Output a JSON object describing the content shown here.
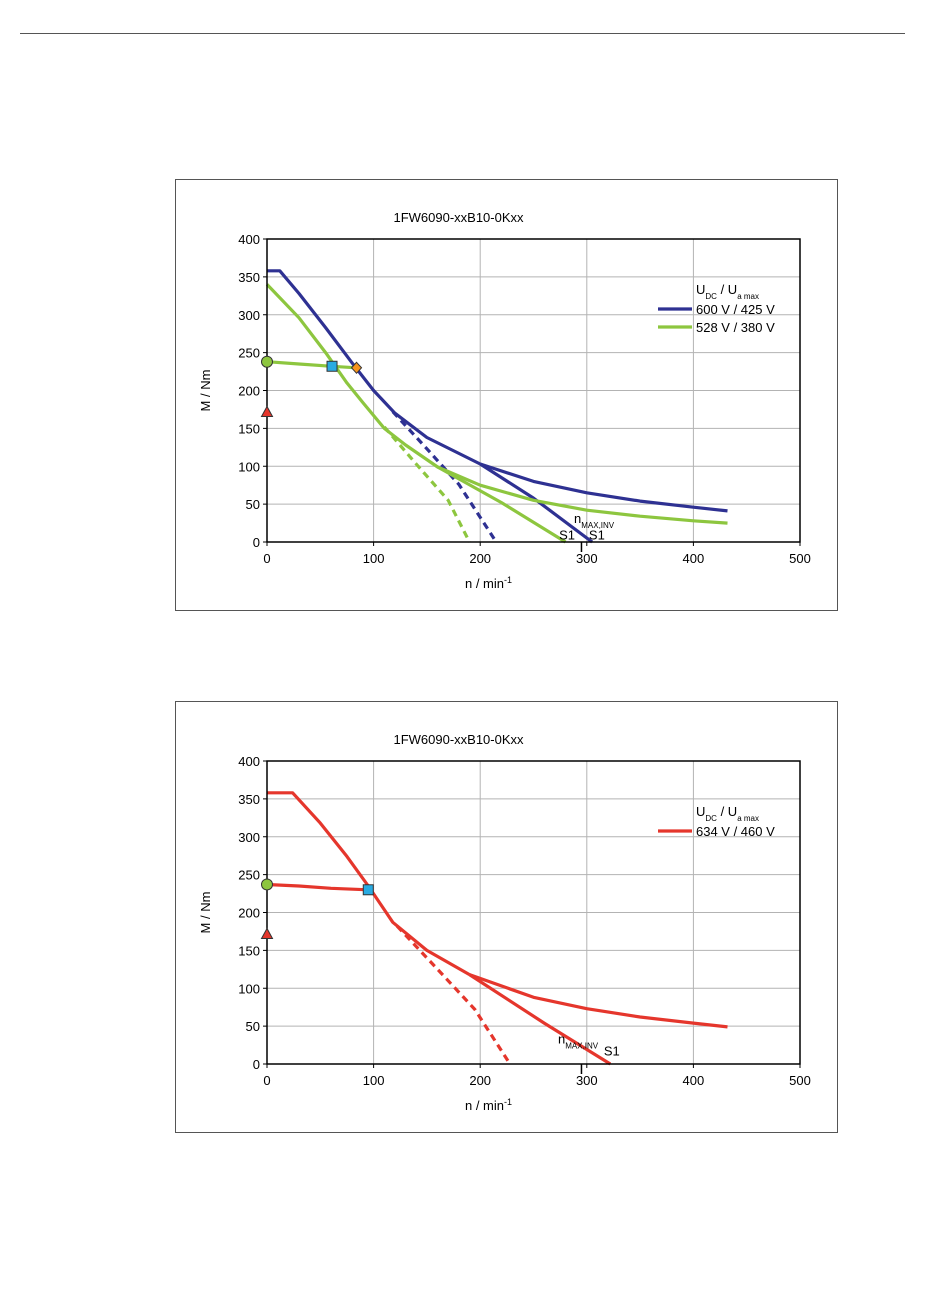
{
  "chart_data": [
    {
      "type": "line",
      "title": "1FW6090-xxB10-0Kxx",
      "xlabel": "n / min",
      "xlabel_sup": "-1",
      "ylabel": "M / Nm",
      "xlim": [
        0,
        500
      ],
      "ylim": [
        0,
        400
      ],
      "xticks": [
        "0",
        "100",
        "200",
        "300",
        "400",
        "500"
      ],
      "yticks": [
        "0",
        "50",
        "100",
        "150",
        "200",
        "250",
        "300",
        "350",
        "400"
      ],
      "grid": true,
      "legend_header": {
        "main": "U",
        "sub1": "DC",
        "sep": "  /  U",
        "sub2": "a max"
      },
      "legend_position": "top-right",
      "series": [
        {
          "name": "600 V / 425 V",
          "color": "#2e3192",
          "segments": [
            {
              "style": "solid",
              "x": [
                0,
                12,
                30,
                55,
                80,
                100,
                120,
                150,
                200
              ],
              "y": [
                358,
                358,
                328,
                283,
                236,
                200,
                170,
                138,
                103
              ]
            },
            {
              "style": "solid",
              "x": [
                200,
                250,
                300,
                350,
                400,
                432
              ],
              "y": [
                103,
                80,
                65,
                54,
                46,
                41
              ]
            },
            {
              "style": "dashed",
              "x": [
                118,
                150,
                180,
                215
              ],
              "y": [
                172,
                123,
                76,
                0
              ]
            },
            {
              "style": "solid",
              "x": [
                200,
                250,
                305
              ],
              "y": [
                103,
                58,
                0
              ]
            }
          ]
        },
        {
          "name": "528 V / 380 V",
          "color": "#8dc63f",
          "segments": [
            {
              "style": "solid",
              "x": [
                0,
                30,
                55,
                75,
                90,
                110,
                130,
                160,
                200
              ],
              "y": [
                340,
                296,
                250,
                210,
                184,
                150,
                128,
                99,
                75
              ]
            },
            {
              "style": "solid",
              "x": [
                200,
                250,
                300,
                350,
                400,
                432
              ],
              "y": [
                75,
                55,
                42,
                34,
                28,
                25
              ]
            },
            {
              "style": "dashed",
              "x": [
                110,
                140,
                170,
                190
              ],
              "y": [
                152,
                103,
                55,
                0
              ]
            },
            {
              "style": "solid",
              "x": [
                160,
                220,
                280
              ],
              "y": [
                99,
                52,
                0
              ]
            },
            {
              "style": "solid",
              "x": [
                0,
                30,
                61,
                84
              ],
              "y": [
                238,
                235,
                232,
                230
              ]
            }
          ]
        }
      ],
      "markers": [
        {
          "shape": "circle",
          "x": 0,
          "y": 238,
          "color": "#8dc63f"
        },
        {
          "shape": "triangle",
          "x": 0,
          "y": 171,
          "color": "#e5362c"
        },
        {
          "shape": "square",
          "x": 61,
          "y": 232,
          "color": "#29abe2"
        },
        {
          "shape": "diamond",
          "x": 84,
          "y": 230,
          "color": "#f7941d"
        }
      ],
      "annotations": [
        {
          "text": "n",
          "sub": "MAX,INV",
          "x": 288,
          "y": 25
        },
        {
          "text": "S1",
          "x": 274,
          "y": 3
        },
        {
          "text": "S1",
          "x": 302,
          "y": 3
        }
      ],
      "vline_x": 295
    },
    {
      "type": "line",
      "title": "1FW6090-xxB10-0Kxx",
      "xlabel": "n / min",
      "xlabel_sup": "-1",
      "ylabel": "M / Nm",
      "xlim": [
        0,
        500
      ],
      "ylim": [
        0,
        400
      ],
      "xticks": [
        "0",
        "100",
        "200",
        "300",
        "400",
        "500"
      ],
      "yticks": [
        "0",
        "50",
        "100",
        "150",
        "200",
        "250",
        "300",
        "350",
        "400"
      ],
      "grid": true,
      "legend_header": {
        "main": "U",
        "sub1": "DC",
        "sep": "  /  U",
        "sub2": "a max"
      },
      "legend_position": "top-right",
      "series": [
        {
          "name": "634 V / 460 V",
          "color": "#e5362c",
          "segments": [
            {
              "style": "solid",
              "x": [
                0,
                24,
                50,
                75,
                95,
                118,
                150,
                190
              ],
              "y": [
                358,
                358,
                318,
                274,
                235,
                187,
                150,
                118
              ]
            },
            {
              "style": "solid",
              "x": [
                190,
                250,
                300,
                350,
                400,
                432
              ],
              "y": [
                118,
                88,
                73,
                62,
                54,
                49
              ]
            },
            {
              "style": "dashed",
              "x": [
                122,
                160,
                195,
                228
              ],
              "y": [
                182,
                125,
                72,
                0
              ]
            },
            {
              "style": "solid",
              "x": [
                190,
                260,
                322
              ],
              "y": [
                118,
                54,
                0
              ]
            },
            {
              "style": "solid",
              "x": [
                0,
                30,
                60,
                95
              ],
              "y": [
                237,
                235,
                232,
                230
              ]
            }
          ]
        }
      ],
      "markers": [
        {
          "shape": "circle",
          "x": 0,
          "y": 237,
          "color": "#8dc63f"
        },
        {
          "shape": "triangle",
          "x": 0,
          "y": 171,
          "color": "#e5362c"
        },
        {
          "shape": "square",
          "x": 95,
          "y": 230,
          "color": "#29abe2"
        }
      ],
      "annotations": [
        {
          "text": "n",
          "sub": "MAX,INV",
          "x": 273,
          "y": 27
        },
        {
          "text": "S1",
          "x": 316,
          "y": 11
        }
      ],
      "vline_x": 295
    }
  ]
}
